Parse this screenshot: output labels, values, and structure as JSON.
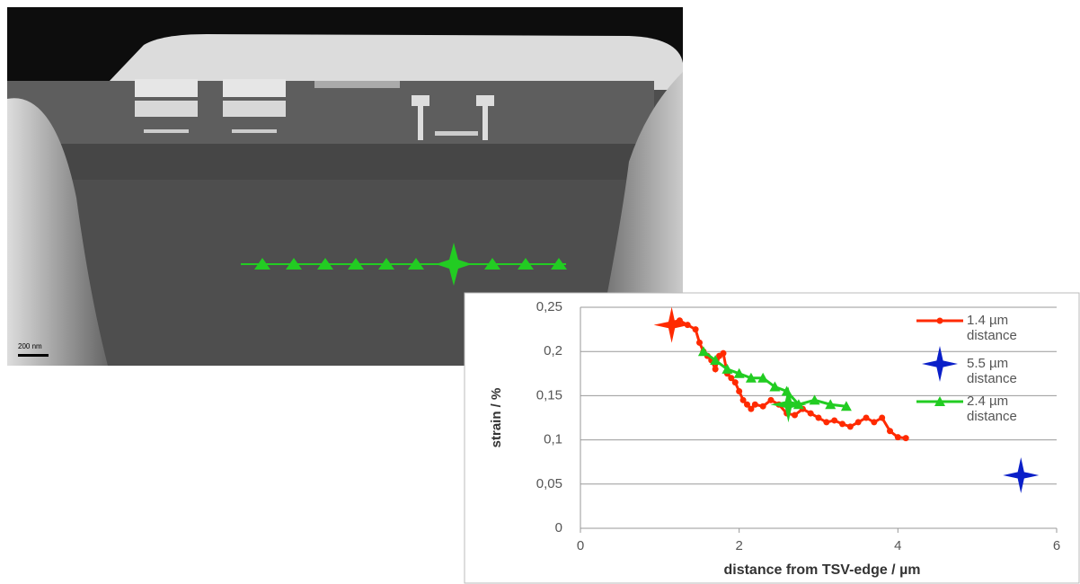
{
  "image": {
    "scale_bar": "200 nm"
  },
  "chart_data": {
    "type": "line",
    "xlabel": "distance from TSV-edge / µm",
    "ylabel": "strain / %",
    "xlim": [
      0,
      6
    ],
    "xticks": [
      0,
      2,
      4,
      6
    ],
    "ylim": [
      0,
      0.25
    ],
    "yticks": [
      0,
      {
        "value": 0.05,
        "label": "0,05"
      },
      {
        "value": 0.1,
        "label": "0,1"
      },
      {
        "value": 0.15,
        "label": "0,15"
      },
      {
        "value": 0.2,
        "label": "0,2"
      },
      {
        "value": 0.25,
        "label": "0,25"
      }
    ],
    "grid": true,
    "series": [
      {
        "name": "1.4 µm distance",
        "color": "#ff2a00",
        "marker": "dot",
        "x": [
          1.15,
          1.25,
          1.35,
          1.45,
          1.5,
          1.55,
          1.6,
          1.65,
          1.7,
          1.75,
          1.8,
          1.85,
          1.9,
          1.95,
          2.0,
          2.05,
          2.1,
          2.15,
          2.2,
          2.3,
          2.4,
          2.5,
          2.6,
          2.7,
          2.8,
          2.9,
          3.0,
          3.1,
          3.2,
          3.3,
          3.4,
          3.5,
          3.6,
          3.7,
          3.8,
          3.9,
          4.0,
          4.1
        ],
        "values": [
          0.233,
          0.235,
          0.23,
          0.225,
          0.21,
          0.2,
          0.195,
          0.19,
          0.18,
          0.195,
          0.198,
          0.175,
          0.17,
          0.165,
          0.155,
          0.145,
          0.14,
          0.135,
          0.14,
          0.138,
          0.145,
          0.14,
          0.13,
          0.128,
          0.135,
          0.13,
          0.125,
          0.12,
          0.122,
          0.118,
          0.115,
          0.12,
          0.125,
          0.12,
          0.125,
          0.11,
          0.103,
          0.102
        ],
        "highlight": {
          "x": 1.15,
          "y": 0.23
        }
      },
      {
        "name": "5.5 µm distance",
        "color": "#0a1fc8",
        "marker": "star",
        "x": [
          5.55
        ],
        "values": [
          0.06
        ]
      },
      {
        "name": "2.4 µm distance",
        "color": "#22cc22",
        "marker": "triangle",
        "x": [
          1.55,
          1.7,
          1.85,
          2.0,
          2.15,
          2.3,
          2.45,
          2.6,
          2.75,
          2.95,
          3.15,
          3.35
        ],
        "values": [
          0.2,
          0.19,
          0.18,
          0.175,
          0.17,
          0.17,
          0.16,
          0.155,
          0.14,
          0.145,
          0.14,
          0.138
        ],
        "highlight": {
          "x": 2.62,
          "y": 0.14
        }
      }
    ]
  }
}
